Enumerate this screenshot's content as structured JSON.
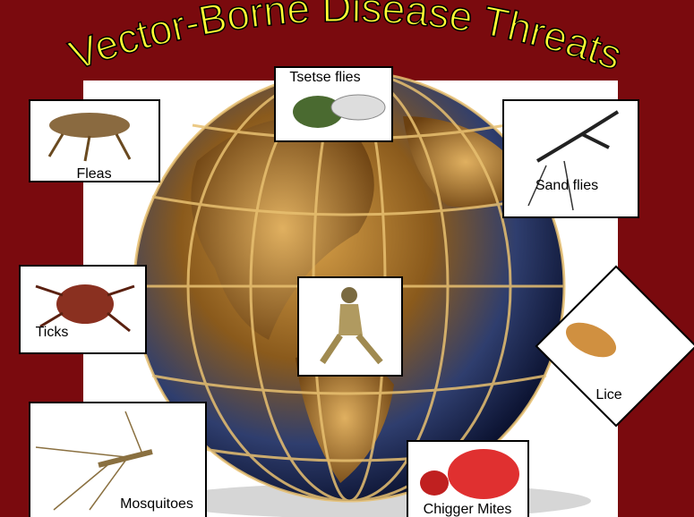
{
  "title": "Vector-Borne Disease Threats",
  "vectors": [
    {
      "label": "Fleas"
    },
    {
      "label": "Tsetse flies"
    },
    {
      "label": "Sand flies"
    },
    {
      "label": "Ticks"
    },
    {
      "label": "Lice"
    },
    {
      "label": "Mosquitoes"
    },
    {
      "label": "Chigger Mites"
    }
  ]
}
